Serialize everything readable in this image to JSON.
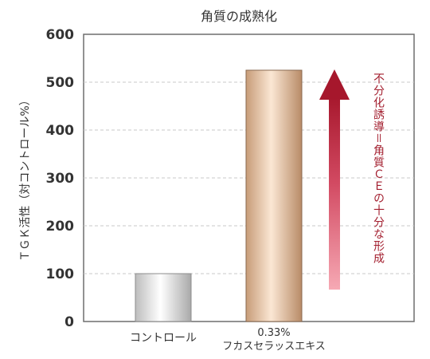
{
  "chart_data": {
    "type": "bar",
    "title": "角質の成熟化",
    "xlabel": "",
    "ylabel": "ＴＧＫ活性（対コントロール%）",
    "categories": [
      {
        "line1": "コントロール",
        "line2": ""
      },
      {
        "line1": "0.33%",
        "line2": "フカスセラッスエキス"
      }
    ],
    "values": [
      100,
      525
    ],
    "ylim": [
      0,
      600
    ],
    "yticks": [
      0,
      100,
      200,
      300,
      400,
      500,
      600
    ],
    "grid": true,
    "annotation": {
      "text": "不分化誘導＝角質ＣＥの十分な形成",
      "direction": "up"
    },
    "colors": {
      "control_bar": "#e9e9e9",
      "extract_bar": "#e8c2a2",
      "arrow_top": "#a6172c",
      "arrow_bottom": "#f6a9b4",
      "annotation_text": "#a31f2f",
      "grid": "#c8c8c8",
      "axis": "#6e6e6e"
    }
  }
}
